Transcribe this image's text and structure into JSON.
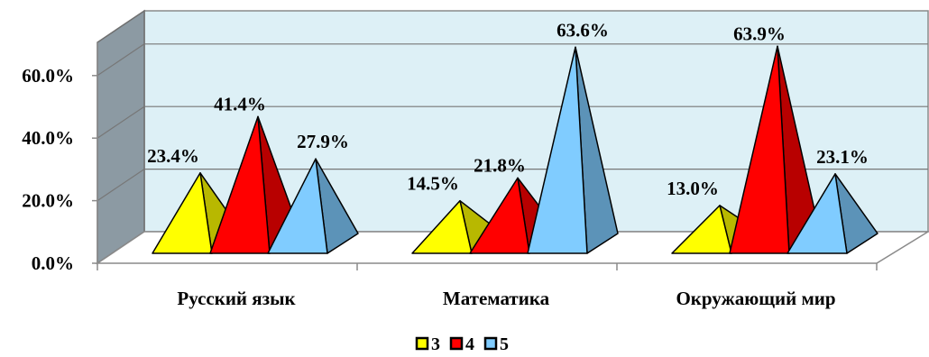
{
  "chart_data": {
    "type": "bar",
    "bar_shape": "3d-pyramid",
    "categories": [
      "Русский язык",
      "Математика",
      "Окружающий мир"
    ],
    "series": [
      {
        "name": "3",
        "values": [
          23.4,
          14.5,
          13.0
        ],
        "labels": [
          "23.4%",
          "14.5%",
          "13.0%"
        ],
        "color": "#ffff00"
      },
      {
        "name": "4",
        "values": [
          41.4,
          21.8,
          63.9
        ],
        "labels": [
          "41.4%",
          "21.8%",
          "63.9%"
        ],
        "color": "#ff0000"
      },
      {
        "name": "5",
        "values": [
          27.9,
          63.6,
          23.1
        ],
        "labels": [
          "27.9%",
          "63.6%",
          "23.1%"
        ],
        "color": "#80ccff"
      }
    ],
    "y_ticks": [
      "0.0%",
      "20.0%",
      "40.0%",
      "60.0%"
    ],
    "y_tick_values": [
      0,
      20,
      40,
      60
    ],
    "ylim": [
      0,
      75
    ],
    "grid": true,
    "wall_color": "#ddf0f6",
    "legend_position": "bottom"
  }
}
